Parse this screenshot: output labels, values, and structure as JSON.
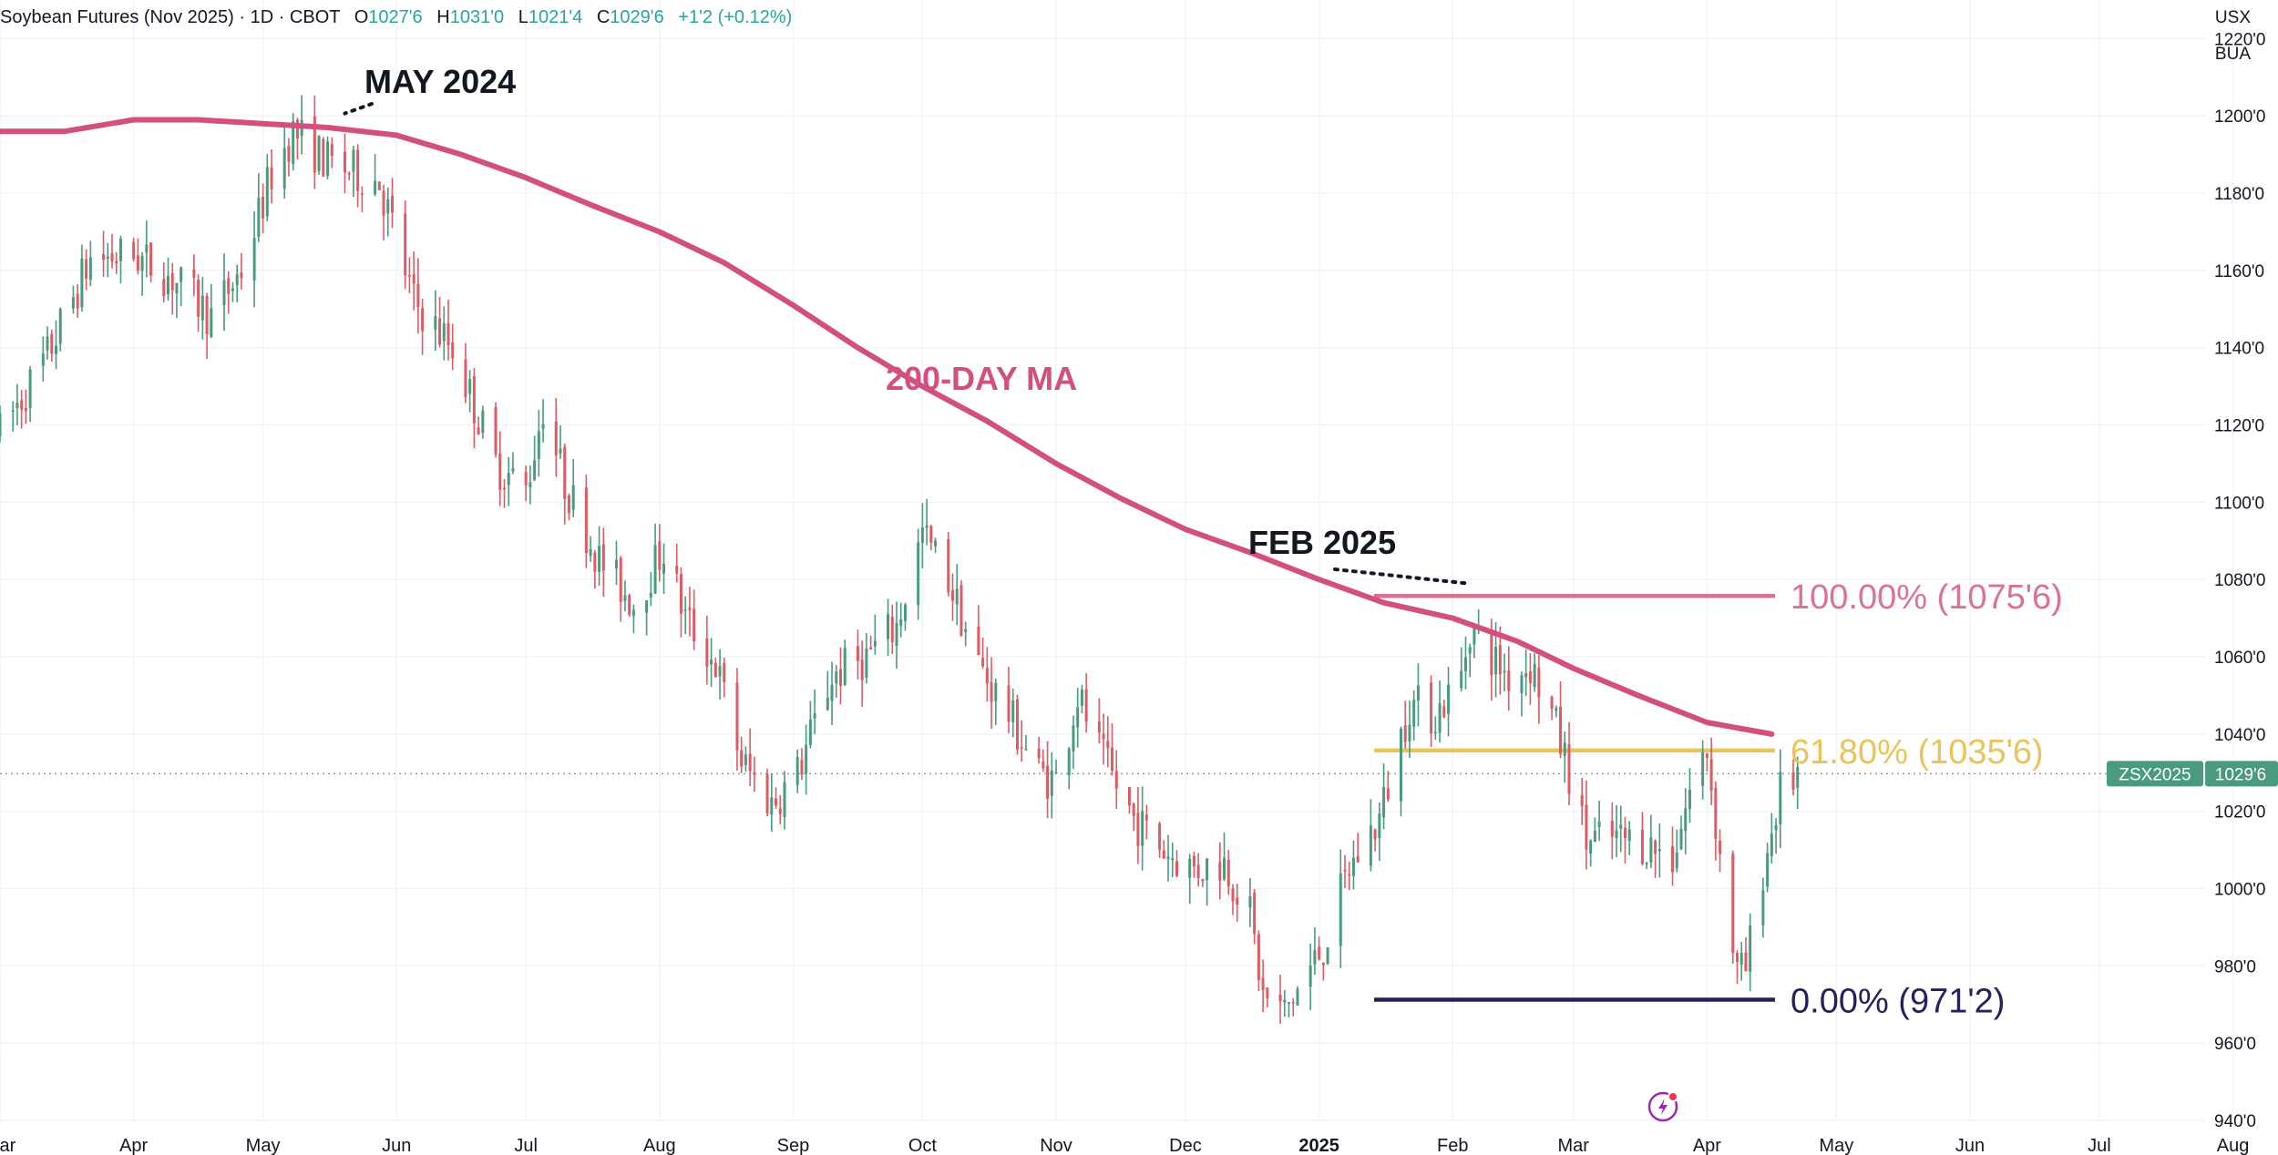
{
  "header": {
    "symbol_title": "Soybean Futures (Nov 2025) · 1D · CBOT",
    "open_label": "O",
    "open_value": "1027'6",
    "high_label": "H",
    "high_value": "1031'0",
    "low_label": "L",
    "low_value": "1021'4",
    "close_label": "C",
    "close_value": "1029'6",
    "change": "+1'2 (+0.12%)"
  },
  "units": {
    "currency": "USX",
    "quantity": "BUA"
  },
  "price_tag": {
    "symbol": "ZSX2025",
    "value": "1029'6"
  },
  "annotations": {
    "may_2024": "MAY 2024",
    "feb_2025": "FEB 2025",
    "ma_label": "200-DAY MA"
  },
  "fib_levels": [
    {
      "label": "100.00% (1075'6)",
      "price": 1075.75,
      "color": "#d9738f"
    },
    {
      "label": "61.80% (1035'6)",
      "price": 1035.75,
      "color": "#eac45a"
    },
    {
      "label": "0.00% (971'2)",
      "price": 971.25,
      "color": "#26215c"
    }
  ],
  "colors": {
    "up": "#4a9a7e",
    "down": "#e05a63",
    "ma": "#d24f7f",
    "grid": "#f0f3fa",
    "axis_text": "#131722",
    "last_price": "#4a9a7e"
  },
  "chart_data": {
    "type": "candlestick",
    "title": "Soybean Futures (Nov 2025) · 1D · CBOT",
    "y_axis": {
      "ylim": [
        940,
        1230
      ],
      "ticks": [
        "1220'0",
        "1200'0",
        "1180'0",
        "1160'0",
        "1140'0",
        "1120'0",
        "1100'0",
        "1080'0",
        "1060'0",
        "1040'0",
        "1020'0",
        "1000'0",
        "980'0",
        "960'0",
        "940'0"
      ],
      "tick_values": [
        1220,
        1200,
        1180,
        1160,
        1140,
        1120,
        1100,
        1080,
        1060,
        1040,
        1020,
        1000,
        980,
        960,
        940
      ]
    },
    "x_axis": {
      "ticks": [
        "Mar",
        "Apr",
        "May",
        "Jun",
        "Jul",
        "Aug",
        "Sep",
        "Oct",
        "Nov",
        "Dec",
        "2025",
        "Feb",
        "Mar",
        "Apr",
        "May",
        "Jun",
        "Jul",
        "Aug"
      ],
      "tick_dates": [
        "2024-03-01",
        "2024-04-01",
        "2024-05-01",
        "2024-06-01",
        "2024-07-01",
        "2024-08-01",
        "2024-09-01",
        "2024-10-01",
        "2024-11-01",
        "2024-12-01",
        "2025-01-01",
        "2025-02-01",
        "2025-03-01",
        "2025-04-01",
        "2025-05-01",
        "2025-06-01",
        "2025-07-01",
        "2025-08-01"
      ],
      "range": [
        "2024-03-01",
        "2025-08-03"
      ]
    },
    "grid": true,
    "last_price": 1029.75,
    "price_path": [
      [
        "2024-03-01",
        1118
      ],
      [
        "2024-03-12",
        1138
      ],
      [
        "2024-03-22",
        1163
      ],
      [
        "2024-04-01",
        1164
      ],
      [
        "2024-04-10",
        1158
      ],
      [
        "2024-04-19",
        1148
      ],
      [
        "2024-04-26",
        1160
      ],
      [
        "2024-05-03",
        1185
      ],
      [
        "2024-05-08",
        1196
      ],
      [
        "2024-05-16",
        1188
      ],
      [
        "2024-05-28",
        1183
      ],
      [
        "2024-06-05",
        1152
      ],
      [
        "2024-06-14",
        1140
      ],
      [
        "2024-06-24",
        1110
      ],
      [
        "2024-07-01",
        1103
      ],
      [
        "2024-07-05",
        1125
      ],
      [
        "2024-07-10",
        1105
      ],
      [
        "2024-07-18",
        1085
      ],
      [
        "2024-07-26",
        1074
      ],
      [
        "2024-08-02",
        1088
      ],
      [
        "2024-08-07",
        1070
      ],
      [
        "2024-08-14",
        1058
      ],
      [
        "2024-08-20",
        1033
      ],
      [
        "2024-08-27",
        1022
      ],
      [
        "2024-09-02",
        1030
      ],
      [
        "2024-09-10",
        1055
      ],
      [
        "2024-09-18",
        1060
      ],
      [
        "2024-09-25",
        1068
      ],
      [
        "2024-10-01",
        1092
      ],
      [
        "2024-10-07",
        1080
      ],
      [
        "2024-10-14",
        1058
      ],
      [
        "2024-10-21",
        1045
      ],
      [
        "2024-10-28",
        1030
      ],
      [
        "2024-11-01",
        1028
      ],
      [
        "2024-11-06",
        1050
      ],
      [
        "2024-11-12",
        1033
      ],
      [
        "2024-11-19",
        1018
      ],
      [
        "2024-11-26",
        1010
      ],
      [
        "2024-12-03",
        1005
      ],
      [
        "2024-12-10",
        1007
      ],
      [
        "2024-12-16",
        993
      ],
      [
        "2024-12-19",
        972
      ],
      [
        "2024-12-24",
        968
      ],
      [
        "2025-01-02",
        985
      ],
      [
        "2025-01-08",
        1005
      ],
      [
        "2025-01-15",
        1018
      ],
      [
        "2025-01-22",
        1048
      ],
      [
        "2025-01-28",
        1045
      ],
      [
        "2025-02-03",
        1055
      ],
      [
        "2025-02-05",
        1068
      ],
      [
        "2025-02-10",
        1060
      ],
      [
        "2025-02-14",
        1055
      ],
      [
        "2025-02-19",
        1058
      ],
      [
        "2025-02-24",
        1045
      ],
      [
        "2025-02-28",
        1030
      ],
      [
        "2025-03-04",
        1012
      ],
      [
        "2025-03-10",
        1013
      ],
      [
        "2025-03-17",
        1012
      ],
      [
        "2025-03-24",
        1008
      ],
      [
        "2025-03-28",
        1025
      ],
      [
        "2025-04-01",
        1036
      ],
      [
        "2025-04-04",
        1008
      ],
      [
        "2025-04-08",
        978
      ],
      [
        "2025-04-10",
        979
      ],
      [
        "2025-04-14",
        1005
      ],
      [
        "2025-04-18",
        1025
      ],
      [
        "2025-04-22",
        1029.75
      ]
    ],
    "annotation_points": [
      {
        "label": "MAY 2024",
        "date": "2024-05-20",
        "price": 1203
      },
      {
        "label": "FEB 2025",
        "date": "2025-02-03",
        "price": 1075.75
      }
    ],
    "series": [
      {
        "name": "200-DAY MA",
        "type": "line",
        "points": [
          [
            "2024-03-01",
            1196
          ],
          [
            "2024-03-16",
            1196
          ],
          [
            "2024-04-01",
            1199
          ],
          [
            "2024-04-16",
            1199
          ],
          [
            "2024-05-01",
            1198
          ],
          [
            "2024-05-16",
            1197
          ],
          [
            "2024-06-01",
            1195
          ],
          [
            "2024-06-16",
            1190
          ],
          [
            "2024-07-01",
            1184
          ],
          [
            "2024-07-16",
            1177
          ],
          [
            "2024-08-01",
            1170
          ],
          [
            "2024-08-16",
            1162
          ],
          [
            "2024-09-01",
            1151
          ],
          [
            "2024-09-16",
            1140
          ],
          [
            "2024-10-01",
            1130
          ],
          [
            "2024-10-16",
            1121
          ],
          [
            "2024-11-01",
            1110
          ],
          [
            "2024-11-16",
            1101
          ],
          [
            "2024-12-01",
            1093
          ],
          [
            "2024-12-16",
            1087
          ],
          [
            "2025-01-01",
            1080
          ],
          [
            "2025-01-16",
            1074
          ],
          [
            "2025-02-01",
            1070
          ],
          [
            "2025-02-16",
            1064
          ],
          [
            "2025-03-01",
            1057
          ],
          [
            "2025-03-16",
            1050
          ],
          [
            "2025-04-01",
            1043
          ],
          [
            "2025-04-16",
            1040
          ]
        ]
      }
    ]
  }
}
